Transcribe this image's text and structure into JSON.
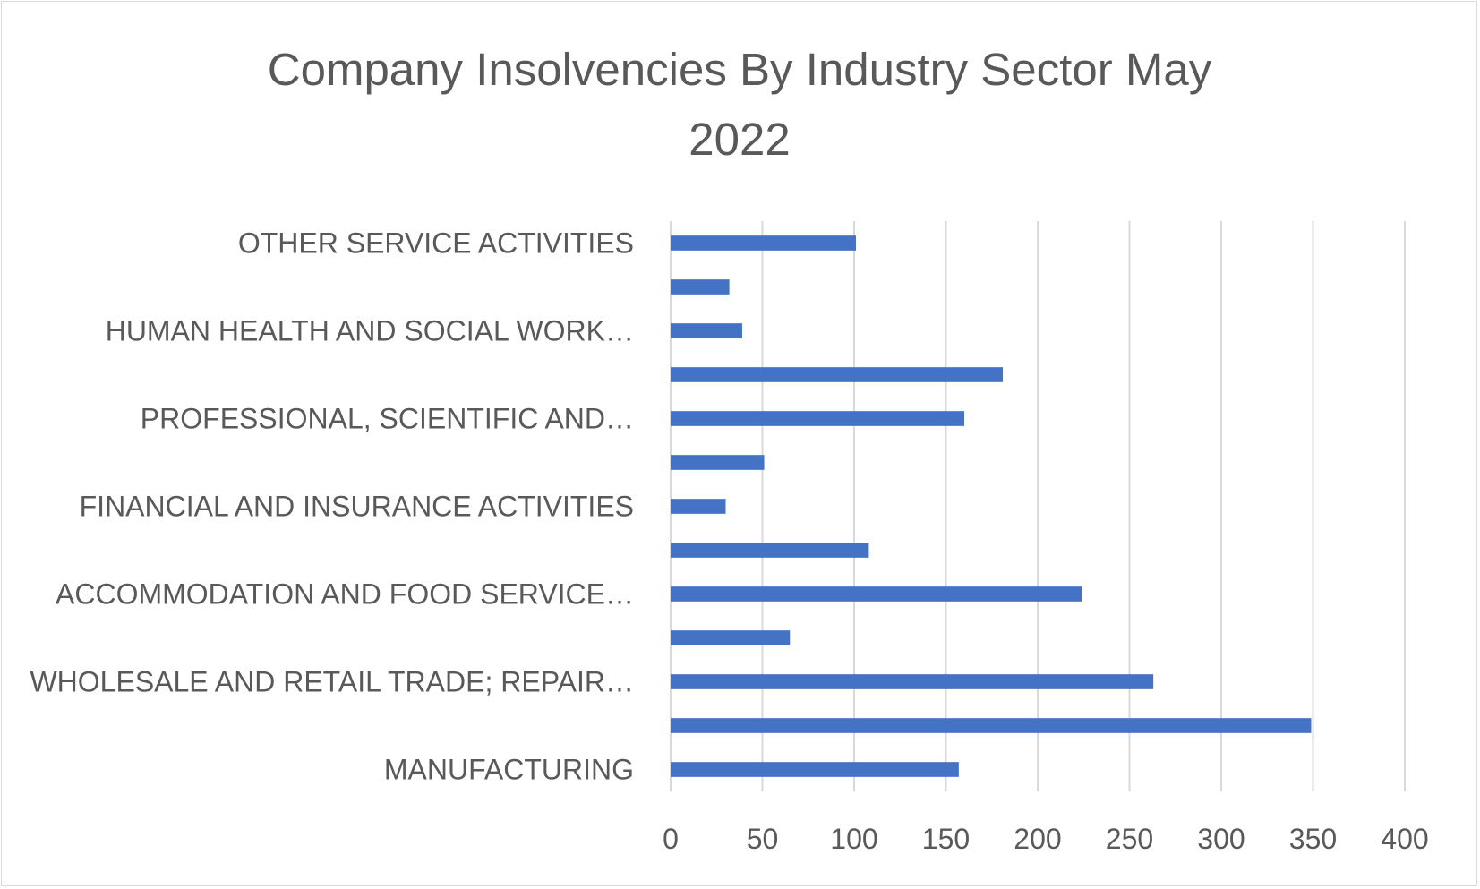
{
  "chart_data": {
    "type": "bar",
    "orientation": "horizontal",
    "title_lines": [
      "Company Insolvencies By Industry Sector May",
      "2022"
    ],
    "categories": [
      "MANUFACTURING",
      "",
      "WHOLESALE AND RETAIL TRADE; REPAIR…",
      "",
      "ACCOMMODATION AND FOOD SERVICE…",
      "",
      "FINANCIAL AND INSURANCE ACTIVITIES",
      "",
      "PROFESSIONAL, SCIENTIFIC AND…",
      "",
      "HUMAN HEALTH AND SOCIAL WORK…",
      "",
      "OTHER SERVICE ACTIVITIES"
    ],
    "values": [
      157,
      349,
      263,
      65,
      224,
      108,
      30,
      51,
      160,
      181,
      39,
      32,
      101
    ],
    "xlim": [
      0,
      400
    ],
    "xticks": [
      0,
      50,
      100,
      150,
      200,
      250,
      300,
      350,
      400
    ],
    "xlabel": "",
    "ylabel": "",
    "grid": true,
    "legend": "none",
    "bar_color": "#4472c4",
    "grid_color": "#d9d9d9",
    "text_color": "#595959"
  }
}
